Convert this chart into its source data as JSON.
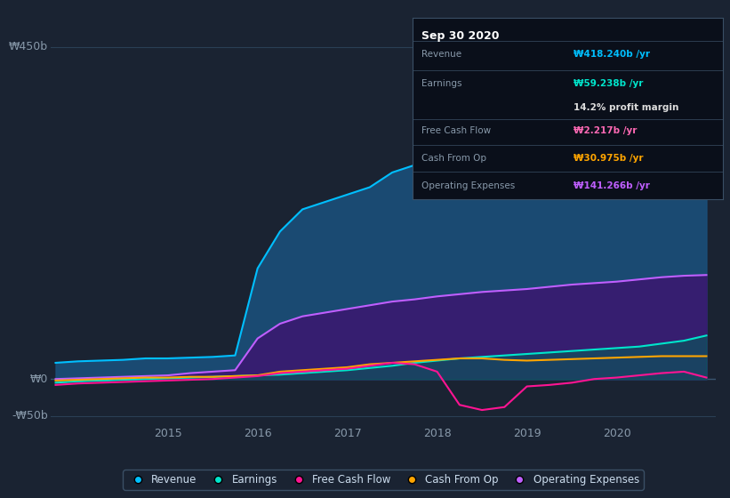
{
  "bg_color": "#1a2332",
  "plot_bg_color": "#1e2d3d",
  "title_box": {
    "date": "Sep 30 2020",
    "rows": [
      {
        "label": "Revenue",
        "value": "₩418.240b /yr",
        "value_color": "#00bfff"
      },
      {
        "label": "Earnings",
        "value": "₩59.238b /yr",
        "value_color": "#00e5cc"
      },
      {
        "label": "",
        "value": "14.2% profit margin",
        "value_color": "#dddddd"
      },
      {
        "label": "Free Cash Flow",
        "value": "₩2.217b /yr",
        "value_color": "#ff69b4"
      },
      {
        "label": "Cash From Op",
        "value": "₩30.975b /yr",
        "value_color": "#ffa500"
      },
      {
        "label": "Operating Expenses",
        "value": "₩141.266b /yr",
        "value_color": "#bf5fff"
      }
    ]
  },
  "ylabel_left": "₩450b",
  "ylabel_zero": "₩0",
  "ylabel_neg": "-₩50b",
  "ylim": [
    -60,
    480
  ],
  "yticks": [
    -50,
    0,
    450
  ],
  "xlim_start": 2013.7,
  "xlim_end": 2021.1,
  "xticks": [
    2015,
    2016,
    2017,
    2018,
    2019,
    2020
  ],
  "grid_color": "#2a3f55",
  "series": {
    "Revenue": {
      "color": "#00bfff",
      "fill_color": "#1a4f7a",
      "x": [
        2013.75,
        2014.0,
        2014.25,
        2014.5,
        2014.75,
        2015.0,
        2015.25,
        2015.5,
        2015.75,
        2016.0,
        2016.25,
        2016.5,
        2016.75,
        2017.0,
        2017.25,
        2017.5,
        2017.75,
        2018.0,
        2018.25,
        2018.5,
        2018.75,
        2019.0,
        2019.25,
        2019.5,
        2019.75,
        2020.0,
        2020.25,
        2020.5,
        2020.75,
        2021.0
      ],
      "y": [
        22,
        24,
        25,
        26,
        28,
        28,
        29,
        30,
        32,
        150,
        200,
        230,
        240,
        250,
        260,
        280,
        290,
        310,
        320,
        330,
        340,
        345,
        355,
        365,
        370,
        375,
        385,
        395,
        410,
        418
      ]
    },
    "Earnings": {
      "color": "#00e5cc",
      "fill_color": "#006655",
      "x": [
        2013.75,
        2014.0,
        2014.25,
        2014.5,
        2014.75,
        2015.0,
        2015.25,
        2015.5,
        2015.75,
        2016.0,
        2016.25,
        2016.5,
        2016.75,
        2017.0,
        2017.25,
        2017.5,
        2017.75,
        2018.0,
        2018.25,
        2018.5,
        2018.75,
        2019.0,
        2019.25,
        2019.5,
        2019.75,
        2020.0,
        2020.25,
        2020.5,
        2020.75,
        2021.0
      ],
      "y": [
        -5,
        -3,
        -2,
        -1,
        0,
        1,
        2,
        3,
        4,
        5,
        6,
        8,
        10,
        12,
        15,
        18,
        22,
        25,
        28,
        30,
        32,
        34,
        36,
        38,
        40,
        42,
        44,
        48,
        52,
        59
      ]
    },
    "Operating Expenses": {
      "color": "#bf5fff",
      "fill_color": "#3a1a70",
      "x": [
        2013.75,
        2014.0,
        2014.25,
        2014.5,
        2014.75,
        2015.0,
        2015.25,
        2015.5,
        2015.75,
        2016.0,
        2016.25,
        2016.5,
        2016.75,
        2017.0,
        2017.25,
        2017.5,
        2017.75,
        2018.0,
        2018.25,
        2018.5,
        2018.75,
        2019.0,
        2019.25,
        2019.5,
        2019.75,
        2020.0,
        2020.25,
        2020.5,
        2020.75,
        2021.0
      ],
      "y": [
        0,
        1,
        2,
        3,
        4,
        5,
        8,
        10,
        12,
        55,
        75,
        85,
        90,
        95,
        100,
        105,
        108,
        112,
        115,
        118,
        120,
        122,
        125,
        128,
        130,
        132,
        135,
        138,
        140,
        141
      ]
    },
    "Cash From Op": {
      "color": "#ffa500",
      "x": [
        2013.75,
        2014.0,
        2014.25,
        2014.5,
        2014.75,
        2015.0,
        2015.25,
        2015.5,
        2015.75,
        2016.0,
        2016.25,
        2016.5,
        2016.75,
        2017.0,
        2017.25,
        2017.5,
        2017.75,
        2018.0,
        2018.25,
        2018.5,
        2018.75,
        2019.0,
        2019.25,
        2019.5,
        2019.75,
        2020.0,
        2020.25,
        2020.5,
        2020.75,
        2021.0
      ],
      "y": [
        -2,
        -1,
        0,
        1,
        2,
        2,
        3,
        3,
        4,
        5,
        10,
        12,
        14,
        16,
        20,
        22,
        24,
        26,
        28,
        28,
        26,
        25,
        26,
        27,
        28,
        29,
        30,
        31,
        31,
        31
      ]
    },
    "Free Cash Flow": {
      "color": "#ff1493",
      "x": [
        2013.75,
        2014.0,
        2014.25,
        2014.5,
        2014.75,
        2015.0,
        2015.25,
        2015.5,
        2015.75,
        2016.0,
        2016.25,
        2016.5,
        2016.75,
        2017.0,
        2017.25,
        2017.5,
        2017.75,
        2018.0,
        2018.25,
        2018.5,
        2018.75,
        2019.0,
        2019.25,
        2019.5,
        2019.75,
        2020.0,
        2020.25,
        2020.5,
        2020.75,
        2021.0
      ],
      "y": [
        -8,
        -6,
        -5,
        -4,
        -3,
        -2,
        -1,
        0,
        2,
        4,
        8,
        10,
        12,
        14,
        18,
        22,
        20,
        10,
        -35,
        -42,
        -38,
        -10,
        -8,
        -5,
        0,
        2,
        5,
        8,
        10,
        2
      ]
    }
  },
  "legend": [
    {
      "label": "Revenue",
      "color": "#00bfff"
    },
    {
      "label": "Earnings",
      "color": "#00e5cc"
    },
    {
      "label": "Free Cash Flow",
      "color": "#ff1493"
    },
    {
      "label": "Cash From Op",
      "color": "#ffa500"
    },
    {
      "label": "Operating Expenses",
      "color": "#bf5fff"
    }
  ]
}
